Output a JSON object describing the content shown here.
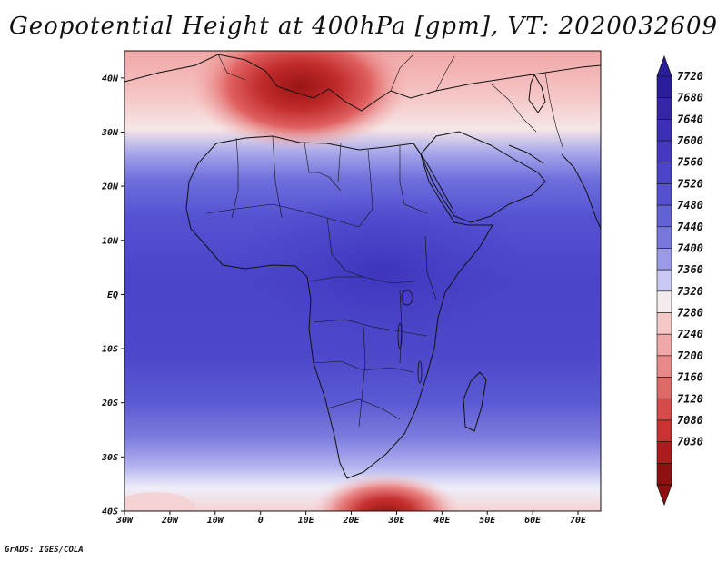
{
  "title": "Geopotential Height at 400hPa [gpm], VT: 2020032609",
  "credit": "GrADS: IGES/COLA",
  "map": {
    "lon_labels": [
      "30W",
      "20W",
      "10W",
      "0",
      "10E",
      "20E",
      "30E",
      "40E",
      "50E",
      "60E",
      "70E"
    ],
    "lat_labels": [
      "40N",
      "30N",
      "20N",
      "10N",
      "EQ",
      "10S",
      "20S",
      "30S",
      "40S"
    ],
    "lon_range": [
      -30,
      75
    ],
    "lat_range": [
      -40,
      45
    ]
  },
  "colorbar": {
    "labels": [
      "7720",
      "7680",
      "7640",
      "7600",
      "7560",
      "7520",
      "7480",
      "7440",
      "7400",
      "7360",
      "7320",
      "7280",
      "7240",
      "7200",
      "7160",
      "7120",
      "7080",
      "7030"
    ],
    "colors": [
      "#2a1e9c",
      "#3526a8",
      "#3d2fb5",
      "#4538c0",
      "#4c44c8",
      "#5550cf",
      "#6262d6",
      "#7676dd",
      "#9a9ae6",
      "#c8c8f2",
      "#f4ecec",
      "#f5c8c8",
      "#efa8a8",
      "#e88888",
      "#df6868",
      "#d54a4a",
      "#c83232",
      "#ad1c1c",
      "#8e1010"
    ]
  }
}
